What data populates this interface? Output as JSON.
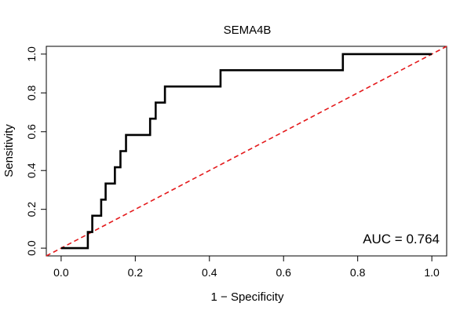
{
  "chart_data": {
    "type": "line",
    "title": "SEMA4B",
    "xlabel": "1 − Specificity",
    "ylabel": "Sensitivity",
    "xlim": [
      -0.04,
      1.04
    ],
    "ylim": [
      -0.04,
      1.04
    ],
    "x_ticks": [
      0.0,
      0.2,
      0.4,
      0.6,
      0.8,
      1.0
    ],
    "x_tick_labels": [
      "0.0",
      "0.2",
      "0.4",
      "0.6",
      "0.8",
      "1.0"
    ],
    "y_ticks": [
      0.0,
      0.2,
      0.4,
      0.6,
      0.8,
      1.0
    ],
    "y_tick_labels": [
      "0.0",
      "0.2",
      "0.4",
      "0.6",
      "0.8",
      "1.0"
    ],
    "grid": false,
    "annotation": "AUC = 0.764",
    "series": [
      {
        "style": "solid",
        "color": "#000000",
        "points": [
          [
            0.0,
            0.0
          ],
          [
            0.072,
            0.0
          ],
          [
            0.072,
            0.083
          ],
          [
            0.084,
            0.083
          ],
          [
            0.084,
            0.167
          ],
          [
            0.108,
            0.167
          ],
          [
            0.108,
            0.25
          ],
          [
            0.12,
            0.25
          ],
          [
            0.12,
            0.333
          ],
          [
            0.145,
            0.333
          ],
          [
            0.145,
            0.417
          ],
          [
            0.16,
            0.417
          ],
          [
            0.16,
            0.5
          ],
          [
            0.175,
            0.5
          ],
          [
            0.175,
            0.583
          ],
          [
            0.24,
            0.583
          ],
          [
            0.24,
            0.667
          ],
          [
            0.255,
            0.667
          ],
          [
            0.255,
            0.75
          ],
          [
            0.28,
            0.75
          ],
          [
            0.28,
            0.833
          ],
          [
            0.43,
            0.833
          ],
          [
            0.43,
            0.917
          ],
          [
            0.76,
            0.917
          ],
          [
            0.76,
            1.0
          ],
          [
            1.0,
            1.0
          ]
        ]
      },
      {
        "style": "dashed",
        "color": "#e41a1c",
        "points": [
          [
            -0.04,
            -0.04
          ],
          [
            1.04,
            1.04
          ]
        ]
      }
    ]
  }
}
